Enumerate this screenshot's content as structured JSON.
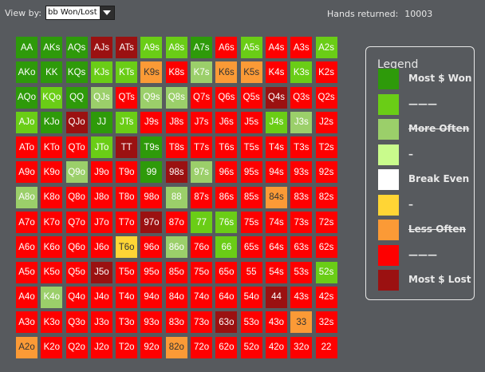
{
  "toolbar": {
    "view_by_label": "View by:",
    "view_by_value": "bb Won/Lost",
    "hands_label": "Hands returned:",
    "hands_count": "10003"
  },
  "colors": {
    "won": "#2e9a0a",
    "pos": "#6acd16",
    "more": "#9bcf6a",
    "light": "#c9fb8c",
    "even": "#ffffff",
    "yellow": "#ffd535",
    "orange": "#fb9a36",
    "red": "#fe0000",
    "lost": "#9b1111"
  },
  "legend": {
    "title": "Legend",
    "items": [
      {
        "label": "Most $ Won",
        "color": "won"
      },
      {
        "label": "———",
        "color": "pos"
      },
      {
        "label": "More Often",
        "color": "more"
      },
      {
        "label": "–",
        "color": "light"
      },
      {
        "label": "Break Even",
        "color": "even"
      },
      {
        "label": "–",
        "color": "yellow"
      },
      {
        "label": "Less Often",
        "color": "orange"
      },
      {
        "label": "———",
        "color": "red"
      },
      {
        "label": "Most $ Lost",
        "color": "lost"
      }
    ]
  },
  "grid": [
    [
      [
        "AA",
        "won"
      ],
      [
        "AKs",
        "won"
      ],
      [
        "AQs",
        "won"
      ],
      [
        "AJs",
        "lost"
      ],
      [
        "ATs",
        "lost"
      ],
      [
        "A9s",
        "pos"
      ],
      [
        "A8s",
        "pos"
      ],
      [
        "A7s",
        "won"
      ],
      [
        "A6s",
        "red"
      ],
      [
        "A5s",
        "pos"
      ],
      [
        "A4s",
        "red"
      ],
      [
        "A3s",
        "red"
      ],
      [
        "A2s",
        "pos"
      ]
    ],
    [
      [
        "AKo",
        "won"
      ],
      [
        "KK",
        "won"
      ],
      [
        "KQs",
        "won"
      ],
      [
        "KJs",
        "pos"
      ],
      [
        "KTs",
        "pos"
      ],
      [
        "K9s",
        "orange"
      ],
      [
        "K8s",
        "red"
      ],
      [
        "K7s",
        "more"
      ],
      [
        "K6s",
        "orange"
      ],
      [
        "K5s",
        "orange"
      ],
      [
        "K4s",
        "red"
      ],
      [
        "K3s",
        "pos"
      ],
      [
        "K2s",
        "red"
      ]
    ],
    [
      [
        "AQo",
        "won"
      ],
      [
        "KQo",
        "pos"
      ],
      [
        "QQ",
        "won"
      ],
      [
        "QJs",
        "more"
      ],
      [
        "QTs",
        "red"
      ],
      [
        "Q9s",
        "more"
      ],
      [
        "Q8s",
        "more"
      ],
      [
        "Q7s",
        "red"
      ],
      [
        "Q6s",
        "red"
      ],
      [
        "Q5s",
        "red"
      ],
      [
        "Q4s",
        "lost"
      ],
      [
        "Q3s",
        "red"
      ],
      [
        "Q2s",
        "red"
      ]
    ],
    [
      [
        "AJo",
        "pos"
      ],
      [
        "KJo",
        "won"
      ],
      [
        "QJo",
        "lost"
      ],
      [
        "JJ",
        "won"
      ],
      [
        "JTs",
        "pos"
      ],
      [
        "J9s",
        "red"
      ],
      [
        "J8s",
        "red"
      ],
      [
        "J7s",
        "red"
      ],
      [
        "J6s",
        "red"
      ],
      [
        "J5s",
        "red"
      ],
      [
        "J4s",
        "pos"
      ],
      [
        "J3s",
        "more"
      ],
      [
        "J2s",
        "red"
      ]
    ],
    [
      [
        "ATo",
        "red"
      ],
      [
        "KTo",
        "red"
      ],
      [
        "QTo",
        "red"
      ],
      [
        "JTo",
        "pos"
      ],
      [
        "TT",
        "lost"
      ],
      [
        "T9s",
        "won"
      ],
      [
        "T8s",
        "red"
      ],
      [
        "T7s",
        "red"
      ],
      [
        "T6s",
        "red"
      ],
      [
        "T5s",
        "red"
      ],
      [
        "T4s",
        "red"
      ],
      [
        "T3s",
        "red"
      ],
      [
        "T2s",
        "red"
      ]
    ],
    [
      [
        "A9o",
        "red"
      ],
      [
        "K9o",
        "red"
      ],
      [
        "Q9o",
        "more"
      ],
      [
        "J9o",
        "red"
      ],
      [
        "T9o",
        "red"
      ],
      [
        "99",
        "won"
      ],
      [
        "98s",
        "lost"
      ],
      [
        "97s",
        "more"
      ],
      [
        "96s",
        "red"
      ],
      [
        "95s",
        "red"
      ],
      [
        "94s",
        "red"
      ],
      [
        "93s",
        "red"
      ],
      [
        "92s",
        "red"
      ]
    ],
    [
      [
        "A8o",
        "more"
      ],
      [
        "K8o",
        "red"
      ],
      [
        "Q8o",
        "red"
      ],
      [
        "J8o",
        "red"
      ],
      [
        "T8o",
        "red"
      ],
      [
        "98o",
        "red"
      ],
      [
        "88",
        "more"
      ],
      [
        "87s",
        "red"
      ],
      [
        "86s",
        "red"
      ],
      [
        "85s",
        "red"
      ],
      [
        "84s",
        "orange"
      ],
      [
        "83s",
        "red"
      ],
      [
        "82s",
        "red"
      ]
    ],
    [
      [
        "A7o",
        "red"
      ],
      [
        "K7o",
        "red"
      ],
      [
        "Q7o",
        "red"
      ],
      [
        "J7o",
        "red"
      ],
      [
        "T7o",
        "red"
      ],
      [
        "97o",
        "lost"
      ],
      [
        "87o",
        "red"
      ],
      [
        "77",
        "pos"
      ],
      [
        "76s",
        "pos"
      ],
      [
        "75s",
        "red"
      ],
      [
        "74s",
        "red"
      ],
      [
        "73s",
        "red"
      ],
      [
        "72s",
        "red"
      ]
    ],
    [
      [
        "A6o",
        "red"
      ],
      [
        "K6o",
        "red"
      ],
      [
        "Q6o",
        "red"
      ],
      [
        "J6o",
        "red"
      ],
      [
        "T6o",
        "yellow"
      ],
      [
        "96o",
        "red"
      ],
      [
        "86o",
        "more"
      ],
      [
        "76o",
        "red"
      ],
      [
        "66",
        "pos"
      ],
      [
        "65s",
        "red"
      ],
      [
        "64s",
        "red"
      ],
      [
        "63s",
        "red"
      ],
      [
        "62s",
        "red"
      ]
    ],
    [
      [
        "A5o",
        "red"
      ],
      [
        "K5o",
        "red"
      ],
      [
        "Q5o",
        "red"
      ],
      [
        "J5o",
        "lost"
      ],
      [
        "T5o",
        "red"
      ],
      [
        "95o",
        "red"
      ],
      [
        "85o",
        "red"
      ],
      [
        "75o",
        "red"
      ],
      [
        "65o",
        "red"
      ],
      [
        "55",
        "red"
      ],
      [
        "54s",
        "red"
      ],
      [
        "53s",
        "red"
      ],
      [
        "52s",
        "pos"
      ]
    ],
    [
      [
        "A4o",
        "red"
      ],
      [
        "K4o",
        "more"
      ],
      [
        "Q4o",
        "red"
      ],
      [
        "J4o",
        "red"
      ],
      [
        "T4o",
        "red"
      ],
      [
        "94o",
        "red"
      ],
      [
        "84o",
        "red"
      ],
      [
        "74o",
        "red"
      ],
      [
        "64o",
        "red"
      ],
      [
        "54o",
        "red"
      ],
      [
        "44",
        "lost"
      ],
      [
        "43s",
        "red"
      ],
      [
        "42s",
        "red"
      ]
    ],
    [
      [
        "A3o",
        "red"
      ],
      [
        "K3o",
        "red"
      ],
      [
        "Q3o",
        "red"
      ],
      [
        "J3o",
        "red"
      ],
      [
        "T3o",
        "red"
      ],
      [
        "93o",
        "red"
      ],
      [
        "83o",
        "red"
      ],
      [
        "73o",
        "red"
      ],
      [
        "63o",
        "lost"
      ],
      [
        "53o",
        "red"
      ],
      [
        "43o",
        "red"
      ],
      [
        "33",
        "orange"
      ],
      [
        "32s",
        "red"
      ]
    ],
    [
      [
        "A2o",
        "orange"
      ],
      [
        "K2o",
        "red"
      ],
      [
        "Q2o",
        "red"
      ],
      [
        "J2o",
        "red"
      ],
      [
        "T2o",
        "red"
      ],
      [
        "92o",
        "red"
      ],
      [
        "82o",
        "orange"
      ],
      [
        "72o",
        "red"
      ],
      [
        "62o",
        "red"
      ],
      [
        "52o",
        "red"
      ],
      [
        "42o",
        "red"
      ],
      [
        "32o",
        "red"
      ],
      [
        "22",
        "red"
      ]
    ]
  ]
}
